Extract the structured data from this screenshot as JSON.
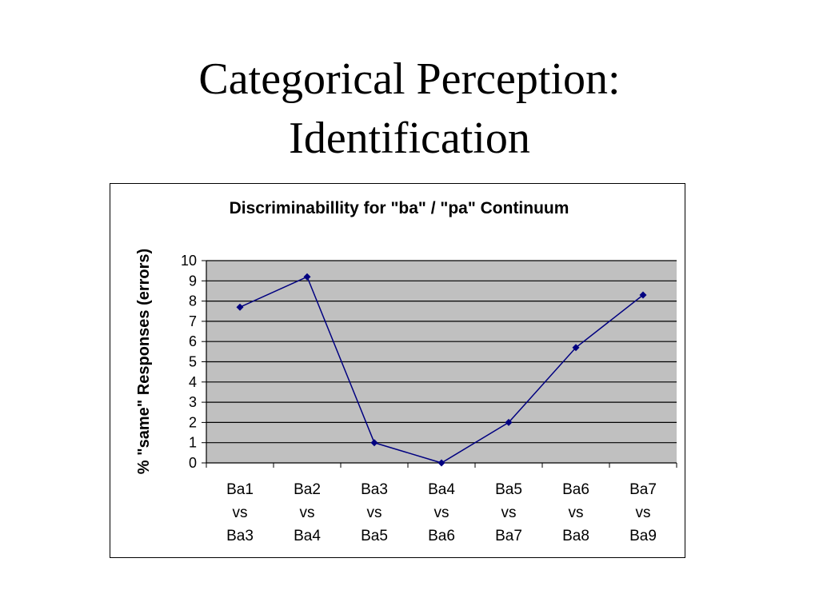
{
  "slide": {
    "title_line1": "Categorical Perception:",
    "title_line2": "Identification"
  },
  "chart_data": {
    "type": "line",
    "title": "Discriminabillity for \"ba\" / \"pa\" Continuum",
    "xlabel": "",
    "ylabel": "% \"same\" Responses (errors)",
    "categories": [
      [
        "Ba1",
        "vs",
        "Ba3"
      ],
      [
        "Ba2",
        "vs",
        "Ba4"
      ],
      [
        "Ba3",
        "vs",
        "Ba5"
      ],
      [
        "Ba4",
        "vs",
        "Ba6"
      ],
      [
        "Ba5",
        "vs",
        "Ba7"
      ],
      [
        "Ba6",
        "vs",
        "Ba8"
      ],
      [
        "Ba7",
        "vs",
        "Ba9"
      ]
    ],
    "series": [
      {
        "values": [
          7.7,
          9.2,
          1.0,
          0.0,
          2.0,
          5.7,
          8.3
        ]
      }
    ],
    "ylim": [
      0,
      10
    ],
    "yticks": [
      0,
      1,
      2,
      3,
      4,
      5,
      6,
      7,
      8,
      9,
      10
    ],
    "grid": true,
    "plot_background": "#c0c0c0",
    "line_color": "#000080"
  }
}
